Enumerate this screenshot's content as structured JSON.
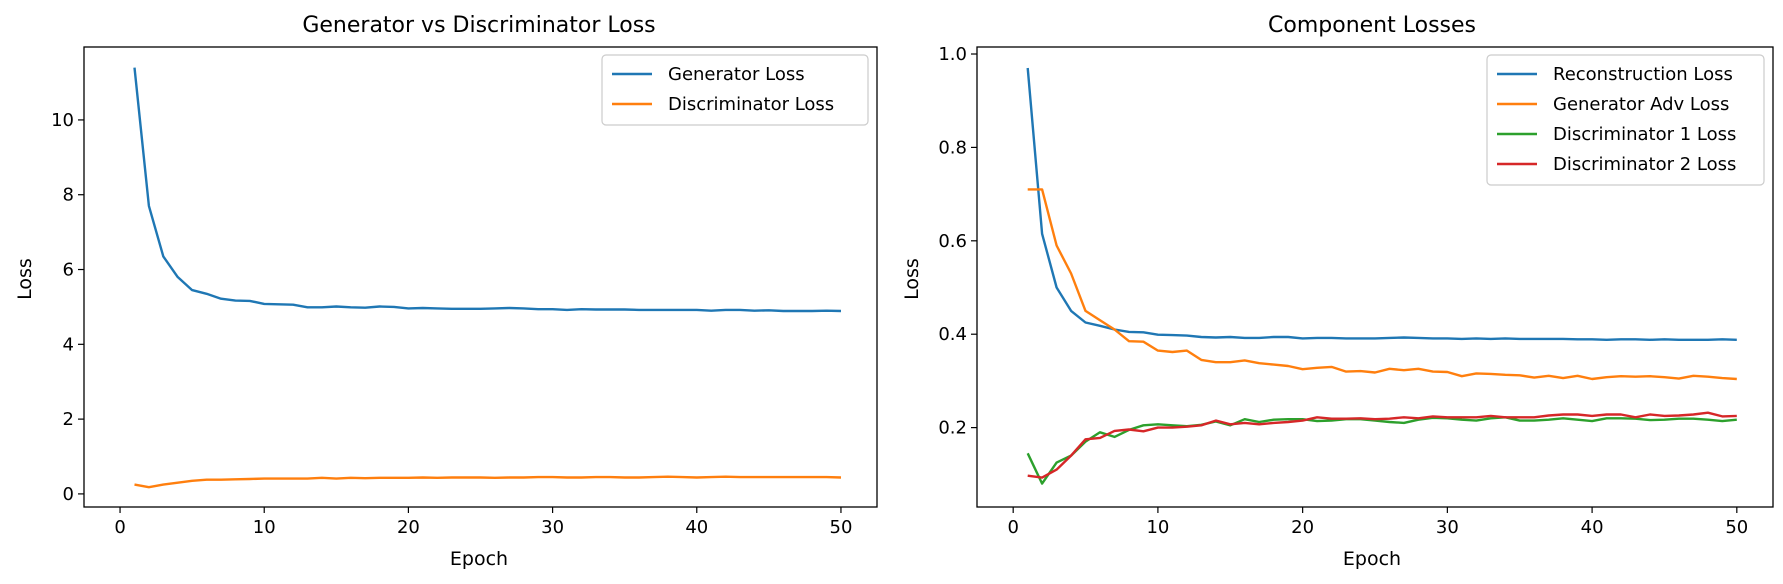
{
  "chart_data": [
    {
      "type": "line",
      "title": "Generator vs Discriminator Loss",
      "xlabel": "Epoch",
      "ylabel": "Loss",
      "xlim": [
        -2.5,
        52.5
      ],
      "ylim": [
        -0.35,
        11.95
      ],
      "xticks": [
        0,
        10,
        20,
        30,
        40,
        50
      ],
      "yticks": [
        0,
        2,
        4,
        6,
        8,
        10
      ],
      "grid": false,
      "legend_position": "top-right",
      "series": [
        {
          "name": "Generator Loss",
          "color": "#1f77b4",
          "x": [
            1,
            2,
            3,
            4,
            5,
            6,
            7,
            8,
            9,
            10,
            11,
            12,
            13,
            14,
            15,
            16,
            17,
            18,
            19,
            20,
            21,
            22,
            23,
            24,
            25,
            26,
            27,
            28,
            29,
            30,
            31,
            32,
            33,
            34,
            35,
            36,
            37,
            38,
            39,
            40,
            41,
            42,
            43,
            44,
            45,
            46,
            47,
            48,
            49,
            50
          ],
          "y": [
            11.4,
            7.7,
            6.35,
            5.8,
            5.45,
            5.35,
            5.22,
            5.17,
            5.16,
            5.08,
            5.07,
            5.06,
            4.99,
            4.99,
            5.01,
            4.99,
            4.98,
            5.01,
            5.0,
            4.96,
            4.97,
            4.96,
            4.95,
            4.95,
            4.95,
            4.96,
            4.97,
            4.96,
            4.94,
            4.94,
            4.92,
            4.94,
            4.93,
            4.93,
            4.93,
            4.92,
            4.92,
            4.92,
            4.92,
            4.92,
            4.9,
            4.92,
            4.92,
            4.9,
            4.91,
            4.89,
            4.89,
            4.89,
            4.9,
            4.89
          ]
        },
        {
          "name": "Discriminator Loss",
          "color": "#ff7f0e",
          "x": [
            1,
            2,
            3,
            4,
            5,
            6,
            7,
            8,
            9,
            10,
            11,
            12,
            13,
            14,
            15,
            16,
            17,
            18,
            19,
            20,
            21,
            22,
            23,
            24,
            25,
            26,
            27,
            28,
            29,
            30,
            31,
            32,
            33,
            34,
            35,
            36,
            37,
            38,
            39,
            40,
            41,
            42,
            43,
            44,
            45,
            46,
            47,
            48,
            49,
            50
          ],
          "y": [
            0.25,
            0.18,
            0.25,
            0.3,
            0.35,
            0.38,
            0.38,
            0.39,
            0.4,
            0.41,
            0.41,
            0.41,
            0.41,
            0.43,
            0.41,
            0.43,
            0.42,
            0.43,
            0.43,
            0.43,
            0.44,
            0.43,
            0.44,
            0.44,
            0.44,
            0.43,
            0.44,
            0.44,
            0.45,
            0.45,
            0.44,
            0.44,
            0.45,
            0.45,
            0.44,
            0.44,
            0.45,
            0.46,
            0.45,
            0.44,
            0.45,
            0.46,
            0.45,
            0.45,
            0.45,
            0.45,
            0.45,
            0.45,
            0.45,
            0.44
          ]
        }
      ]
    },
    {
      "type": "line",
      "title": "Component Losses",
      "xlabel": "Epoch",
      "ylabel": "Loss",
      "xlim": [
        -2.5,
        52.5
      ],
      "ylim": [
        0.03,
        1.015
      ],
      "xticks": [
        0,
        10,
        20,
        30,
        40,
        50
      ],
      "yticks": [
        0.2,
        0.4,
        0.6,
        0.8,
        1.0
      ],
      "ytick_labels": [
        "0.2",
        "0.4",
        "0.6",
        "0.8",
        "1.0"
      ],
      "grid": false,
      "legend_position": "top-right",
      "series": [
        {
          "name": "Reconstruction Loss",
          "color": "#1f77b4",
          "x": [
            1,
            2,
            3,
            4,
            5,
            6,
            7,
            8,
            9,
            10,
            11,
            12,
            13,
            14,
            15,
            16,
            17,
            18,
            19,
            20,
            21,
            22,
            23,
            24,
            25,
            26,
            27,
            28,
            29,
            30,
            31,
            32,
            33,
            34,
            35,
            36,
            37,
            38,
            39,
            40,
            41,
            42,
            43,
            44,
            45,
            46,
            47,
            48,
            49,
            50
          ],
          "y": [
            0.97,
            0.615,
            0.5,
            0.45,
            0.425,
            0.418,
            0.41,
            0.405,
            0.404,
            0.399,
            0.398,
            0.397,
            0.394,
            0.393,
            0.394,
            0.392,
            0.392,
            0.394,
            0.394,
            0.391,
            0.392,
            0.392,
            0.391,
            0.391,
            0.391,
            0.392,
            0.393,
            0.392,
            0.391,
            0.391,
            0.39,
            0.391,
            0.39,
            0.391,
            0.39,
            0.39,
            0.39,
            0.39,
            0.389,
            0.389,
            0.388,
            0.389,
            0.389,
            0.388,
            0.389,
            0.388,
            0.388,
            0.388,
            0.389,
            0.388
          ]
        },
        {
          "name": "Generator Adv Loss",
          "color": "#ff7f0e",
          "x": [
            1,
            2,
            3,
            4,
            5,
            6,
            7,
            8,
            9,
            10,
            11,
            12,
            13,
            14,
            15,
            16,
            17,
            18,
            19,
            20,
            21,
            22,
            23,
            24,
            25,
            26,
            27,
            28,
            29,
            30,
            31,
            32,
            33,
            34,
            35,
            36,
            37,
            38,
            39,
            40,
            41,
            42,
            43,
            44,
            45,
            46,
            47,
            48,
            49,
            50
          ],
          "y": [
            0.71,
            0.71,
            0.59,
            0.53,
            0.45,
            0.43,
            0.41,
            0.385,
            0.384,
            0.365,
            0.362,
            0.365,
            0.345,
            0.34,
            0.34,
            0.344,
            0.338,
            0.335,
            0.332,
            0.325,
            0.328,
            0.33,
            0.32,
            0.321,
            0.318,
            0.326,
            0.323,
            0.326,
            0.32,
            0.319,
            0.31,
            0.316,
            0.315,
            0.313,
            0.312,
            0.307,
            0.311,
            0.306,
            0.311,
            0.304,
            0.308,
            0.31,
            0.309,
            0.31,
            0.308,
            0.305,
            0.311,
            0.309,
            0.306,
            0.304
          ]
        },
        {
          "name": "Discriminator 1 Loss",
          "color": "#2ca02c",
          "x": [
            1,
            2,
            3,
            4,
            5,
            6,
            7,
            8,
            9,
            10,
            11,
            12,
            13,
            14,
            15,
            16,
            17,
            18,
            19,
            20,
            21,
            22,
            23,
            24,
            25,
            26,
            27,
            28,
            29,
            30,
            31,
            32,
            33,
            34,
            35,
            36,
            37,
            38,
            39,
            40,
            41,
            42,
            43,
            44,
            45,
            46,
            47,
            48,
            49,
            50
          ],
          "y": [
            0.145,
            0.08,
            0.125,
            0.14,
            0.17,
            0.19,
            0.18,
            0.195,
            0.205,
            0.207,
            0.205,
            0.203,
            0.206,
            0.213,
            0.205,
            0.218,
            0.212,
            0.217,
            0.218,
            0.218,
            0.214,
            0.215,
            0.218,
            0.218,
            0.215,
            0.212,
            0.21,
            0.217,
            0.221,
            0.22,
            0.217,
            0.215,
            0.22,
            0.222,
            0.215,
            0.215,
            0.217,
            0.22,
            0.217,
            0.214,
            0.22,
            0.22,
            0.219,
            0.216,
            0.217,
            0.219,
            0.219,
            0.217,
            0.214,
            0.217
          ]
        },
        {
          "name": "Discriminator 2 Loss",
          "color": "#d62728",
          "x": [
            1,
            2,
            3,
            4,
            5,
            6,
            7,
            8,
            9,
            10,
            11,
            12,
            13,
            14,
            15,
            16,
            17,
            18,
            19,
            20,
            21,
            22,
            23,
            24,
            25,
            26,
            27,
            28,
            29,
            30,
            31,
            32,
            33,
            34,
            35,
            36,
            37,
            38,
            39,
            40,
            41,
            42,
            43,
            44,
            45,
            46,
            47,
            48,
            49,
            50
          ],
          "y": [
            0.097,
            0.093,
            0.11,
            0.14,
            0.175,
            0.178,
            0.193,
            0.196,
            0.192,
            0.2,
            0.2,
            0.202,
            0.205,
            0.215,
            0.207,
            0.21,
            0.207,
            0.21,
            0.212,
            0.215,
            0.222,
            0.219,
            0.219,
            0.22,
            0.218,
            0.219,
            0.222,
            0.22,
            0.224,
            0.222,
            0.222,
            0.222,
            0.225,
            0.222,
            0.222,
            0.222,
            0.226,
            0.228,
            0.228,
            0.225,
            0.228,
            0.228,
            0.222,
            0.228,
            0.225,
            0.226,
            0.228,
            0.232,
            0.224,
            0.225
          ]
        }
      ]
    }
  ]
}
